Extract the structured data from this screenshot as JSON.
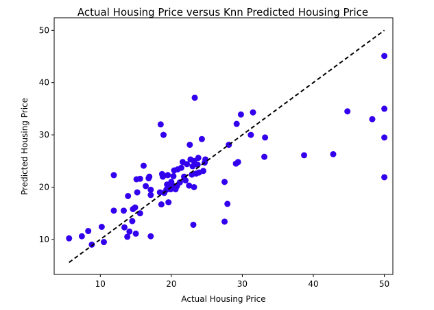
{
  "chart_data": {
    "type": "scatter",
    "title": "Actual Housing Price versus Knn Predicted Housing Price",
    "xlabel": "Actual Housing Price",
    "ylabel": "Predicted Housing Price",
    "xlim": [
      3.5,
      51.2
    ],
    "ylim": [
      3.3,
      52.4
    ],
    "xticks": [
      10,
      20,
      30,
      40,
      50
    ],
    "yticks": [
      10,
      20,
      30,
      40,
      50
    ],
    "grid": false,
    "legend": "none",
    "colors": {
      "points": "#3300ee",
      "reference_line": "#000000"
    },
    "reference_line": {
      "style": "dashed",
      "x": [
        5.6,
        50
      ],
      "y": [
        5.6,
        50
      ]
    },
    "points": [
      [
        5.6,
        10.2
      ],
      [
        7.4,
        10.6
      ],
      [
        8.3,
        11.6
      ],
      [
        8.8,
        9.0
      ],
      [
        10.2,
        12.4
      ],
      [
        10.5,
        9.5
      ],
      [
        11.9,
        22.3
      ],
      [
        11.9,
        15.5
      ],
      [
        13.3,
        15.5
      ],
      [
        13.4,
        12.3
      ],
      [
        13.8,
        10.5
      ],
      [
        13.9,
        18.3
      ],
      [
        14.1,
        11.5
      ],
      [
        14.5,
        13.5
      ],
      [
        14.6,
        15.8
      ],
      [
        14.9,
        16.1
      ],
      [
        15.0,
        11.1
      ],
      [
        15.1,
        21.5
      ],
      [
        15.2,
        19.0
      ],
      [
        15.6,
        21.6
      ],
      [
        15.6,
        15.0
      ],
      [
        16.1,
        24.1
      ],
      [
        16.4,
        20.2
      ],
      [
        16.8,
        21.7
      ],
      [
        16.9,
        22.0
      ],
      [
        17.1,
        18.5
      ],
      [
        17.1,
        19.5
      ],
      [
        17.1,
        10.6
      ],
      [
        18.4,
        19.0
      ],
      [
        18.5,
        32.0
      ],
      [
        18.6,
        16.7
      ],
      [
        18.7,
        22.5
      ],
      [
        18.8,
        22.0
      ],
      [
        18.9,
        30.0
      ],
      [
        19.0,
        18.9
      ],
      [
        19.3,
        19.5
      ],
      [
        19.4,
        20.5
      ],
      [
        19.5,
        22.3
      ],
      [
        19.6,
        17.1
      ],
      [
        19.7,
        20.1
      ],
      [
        19.9,
        19.6
      ],
      [
        20.0,
        21.0
      ],
      [
        20.2,
        20.3
      ],
      [
        20.3,
        22.1
      ],
      [
        20.4,
        23.2
      ],
      [
        20.6,
        19.6
      ],
      [
        20.8,
        20.2
      ],
      [
        20.9,
        23.4
      ],
      [
        21.2,
        20.9
      ],
      [
        21.4,
        23.7
      ],
      [
        21.6,
        24.8
      ],
      [
        21.8,
        22.0
      ],
      [
        22.0,
        21.3
      ],
      [
        22.2,
        24.4
      ],
      [
        22.5,
        20.3
      ],
      [
        22.6,
        28.1
      ],
      [
        22.7,
        25.3
      ],
      [
        22.9,
        22.4
      ],
      [
        23.0,
        24.0
      ],
      [
        23.1,
        12.8
      ],
      [
        23.2,
        25.0
      ],
      [
        23.2,
        20.0
      ],
      [
        23.3,
        37.1
      ],
      [
        23.5,
        22.6
      ],
      [
        23.7,
        24.3
      ],
      [
        23.8,
        25.6
      ],
      [
        23.9,
        22.8
      ],
      [
        24.3,
        29.2
      ],
      [
        24.5,
        23.1
      ],
      [
        24.7,
        24.7
      ],
      [
        24.8,
        25.3
      ],
      [
        27.5,
        21.0
      ],
      [
        27.5,
        13.4
      ],
      [
        27.9,
        16.8
      ],
      [
        28.1,
        28.1
      ],
      [
        29.1,
        24.5
      ],
      [
        29.2,
        32.1
      ],
      [
        29.4,
        24.8
      ],
      [
        29.8,
        33.9
      ],
      [
        31.2,
        30.0
      ],
      [
        31.5,
        34.3
      ],
      [
        33.1,
        25.8
      ],
      [
        33.2,
        29.5
      ],
      [
        38.7,
        26.1
      ],
      [
        42.8,
        26.3
      ],
      [
        44.8,
        34.5
      ],
      [
        48.3,
        33.0
      ],
      [
        50.0,
        45.1
      ],
      [
        50.0,
        35.0
      ],
      [
        50.0,
        29.5
      ],
      [
        50.0,
        21.9
      ]
    ]
  }
}
